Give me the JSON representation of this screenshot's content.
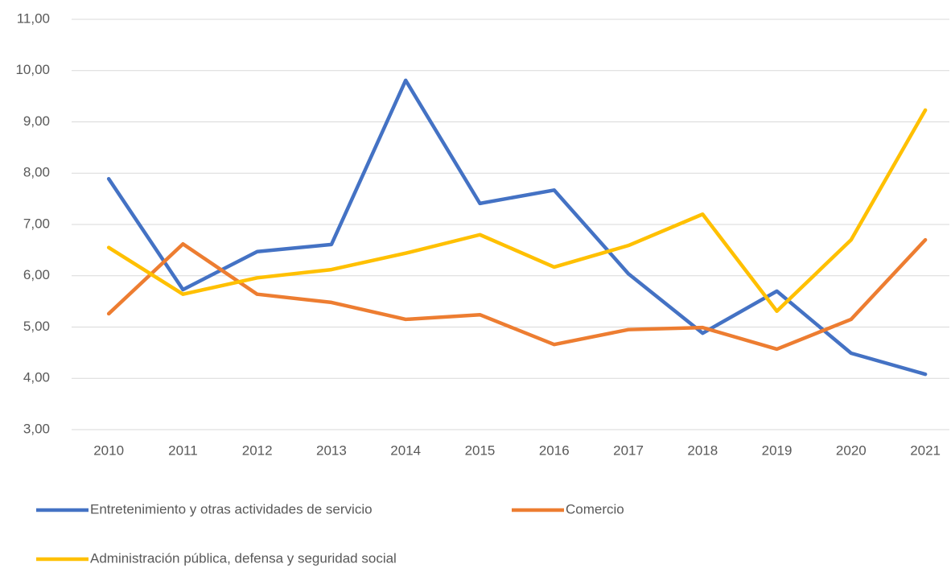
{
  "chart_data": {
    "type": "line",
    "categories": [
      "2010",
      "2011",
      "2012",
      "2013",
      "2014",
      "2015",
      "2016",
      "2017",
      "2018",
      "2019",
      "2020",
      "2021"
    ],
    "series": [
      {
        "name": "Entretenimiento y otras actividades de servicio",
        "color": "#4472c4",
        "values": [
          7.89,
          5.73,
          6.47,
          6.61,
          9.81,
          7.41,
          7.67,
          6.04,
          4.88,
          5.7,
          4.49,
          4.08
        ]
      },
      {
        "name": "Comercio",
        "color": "#ed7d31",
        "values": [
          5.26,
          6.62,
          5.64,
          5.48,
          5.15,
          5.24,
          4.66,
          4.95,
          4.99,
          4.57,
          5.15,
          6.7
        ]
      },
      {
        "name": "Administración pública, defensa y seguridad social",
        "color": "#ffc000",
        "values": [
          6.55,
          5.64,
          5.96,
          6.12,
          6.44,
          6.8,
          6.17,
          6.59,
          7.2,
          5.31,
          6.7,
          9.23
        ]
      }
    ],
    "ylim": [
      3,
      11
    ],
    "yticks": [
      {
        "value": 3,
        "label": "3,00"
      },
      {
        "value": 4,
        "label": "4,00"
      },
      {
        "value": 5,
        "label": "5,00"
      },
      {
        "value": 6,
        "label": "6,00"
      },
      {
        "value": 7,
        "label": "7,00"
      },
      {
        "value": 8,
        "label": "8,00"
      },
      {
        "value": 9,
        "label": "9,00"
      },
      {
        "value": 10,
        "label": "10,00"
      },
      {
        "value": 11,
        "label": "11,00"
      }
    ],
    "grid": true,
    "legend": "bottom"
  }
}
